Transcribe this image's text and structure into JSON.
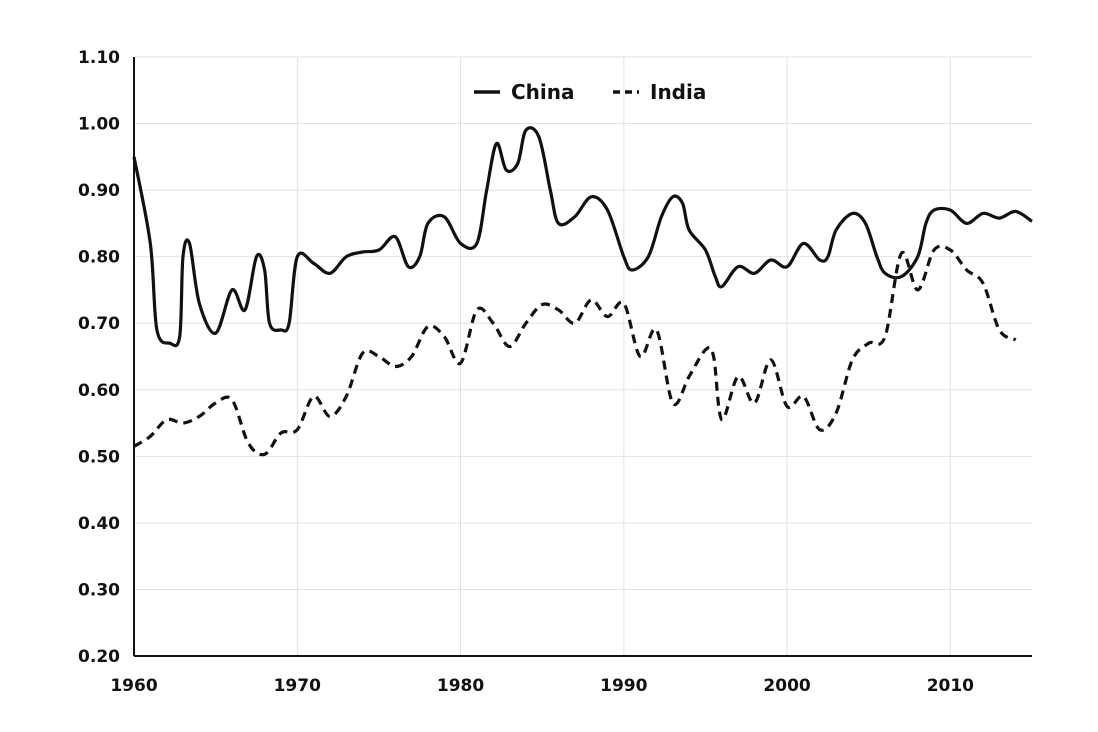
{
  "chart_data": {
    "type": "line",
    "title": "",
    "xlabel": "",
    "ylabel": "",
    "xlim": [
      1960,
      2015
    ],
    "ylim": [
      0.2,
      1.1
    ],
    "x_ticks": [
      1960,
      1970,
      1980,
      1990,
      2000,
      2010
    ],
    "y_ticks": [
      "0.20",
      "0.30",
      "0.40",
      "0.50",
      "0.60",
      "0.70",
      "0.80",
      "0.90",
      "1.00",
      "1.10"
    ],
    "grid": true,
    "legend_position": "top-center",
    "series": [
      {
        "name": "China",
        "style": "solid",
        "color": "#111111",
        "points": [
          [
            1960,
            0.95
          ],
          [
            1961,
            0.82
          ],
          [
            1961.4,
            0.69
          ],
          [
            1962.2,
            0.67
          ],
          [
            1962.8,
            0.68
          ],
          [
            1963,
            0.8
          ],
          [
            1963.4,
            0.82
          ],
          [
            1964,
            0.73
          ],
          [
            1965,
            0.685
          ],
          [
            1966,
            0.75
          ],
          [
            1966.8,
            0.72
          ],
          [
            1967.5,
            0.8
          ],
          [
            1968,
            0.78
          ],
          [
            1968.3,
            0.7
          ],
          [
            1969,
            0.69
          ],
          [
            1969.5,
            0.7
          ],
          [
            1970,
            0.8
          ],
          [
            1971,
            0.79
          ],
          [
            1972,
            0.775
          ],
          [
            1973,
            0.8
          ],
          [
            1974,
            0.807
          ],
          [
            1975,
            0.81
          ],
          [
            1976,
            0.83
          ],
          [
            1976.8,
            0.785
          ],
          [
            1977.5,
            0.8
          ],
          [
            1978,
            0.85
          ],
          [
            1979,
            0.86
          ],
          [
            1980,
            0.82
          ],
          [
            1981,
            0.82
          ],
          [
            1981.6,
            0.9
          ],
          [
            1982.2,
            0.97
          ],
          [
            1982.8,
            0.93
          ],
          [
            1983.5,
            0.94
          ],
          [
            1984,
            0.99
          ],
          [
            1984.8,
            0.98
          ],
          [
            1985.5,
            0.9
          ],
          [
            1986,
            0.85
          ],
          [
            1987,
            0.86
          ],
          [
            1988,
            0.89
          ],
          [
            1989,
            0.87
          ],
          [
            1990,
            0.8
          ],
          [
            1990.5,
            0.78
          ],
          [
            1991.5,
            0.8
          ],
          [
            1992.3,
            0.86
          ],
          [
            1993,
            0.89
          ],
          [
            1993.6,
            0.88
          ],
          [
            1994,
            0.84
          ],
          [
            1995,
            0.81
          ],
          [
            1995.6,
            0.77
          ],
          [
            1996,
            0.755
          ],
          [
            1997,
            0.785
          ],
          [
            1998,
            0.775
          ],
          [
            1999,
            0.795
          ],
          [
            2000,
            0.785
          ],
          [
            2001,
            0.82
          ],
          [
            2002,
            0.795
          ],
          [
            2002.5,
            0.8
          ],
          [
            2003,
            0.84
          ],
          [
            2004,
            0.865
          ],
          [
            2004.8,
            0.85
          ],
          [
            2005.5,
            0.8
          ],
          [
            2006,
            0.775
          ],
          [
            2007,
            0.77
          ],
          [
            2008,
            0.8
          ],
          [
            2008.5,
            0.85
          ],
          [
            2009,
            0.87
          ],
          [
            2010,
            0.87
          ],
          [
            2011,
            0.85
          ],
          [
            2012,
            0.865
          ],
          [
            2013,
            0.858
          ],
          [
            2014,
            0.868
          ],
          [
            2015,
            0.853
          ]
        ]
      },
      {
        "name": "India",
        "style": "dashed",
        "color": "#111111",
        "points": [
          [
            1960,
            0.515
          ],
          [
            1961,
            0.53
          ],
          [
            1962,
            0.555
          ],
          [
            1963,
            0.55
          ],
          [
            1964,
            0.56
          ],
          [
            1965,
            0.58
          ],
          [
            1966,
            0.585
          ],
          [
            1967,
            0.52
          ],
          [
            1968,
            0.503
          ],
          [
            1969,
            0.535
          ],
          [
            1970,
            0.54
          ],
          [
            1971,
            0.59
          ],
          [
            1972,
            0.56
          ],
          [
            1973,
            0.59
          ],
          [
            1974,
            0.655
          ],
          [
            1975,
            0.65
          ],
          [
            1976,
            0.635
          ],
          [
            1977,
            0.65
          ],
          [
            1978,
            0.695
          ],
          [
            1979,
            0.68
          ],
          [
            1980,
            0.64
          ],
          [
            1981,
            0.72
          ],
          [
            1982,
            0.7
          ],
          [
            1983,
            0.665
          ],
          [
            1984,
            0.7
          ],
          [
            1985,
            0.728
          ],
          [
            1986,
            0.72
          ],
          [
            1987,
            0.7
          ],
          [
            1988,
            0.735
          ],
          [
            1989,
            0.71
          ],
          [
            1990,
            0.73
          ],
          [
            1991,
            0.65
          ],
          [
            1992,
            0.69
          ],
          [
            1993,
            0.58
          ],
          [
            1994,
            0.62
          ],
          [
            1995,
            0.66
          ],
          [
            1995.5,
            0.65
          ],
          [
            1996,
            0.555
          ],
          [
            1997,
            0.62
          ],
          [
            1998,
            0.58
          ],
          [
            1999,
            0.645
          ],
          [
            2000,
            0.575
          ],
          [
            2001,
            0.59
          ],
          [
            2002,
            0.54
          ],
          [
            2003,
            0.565
          ],
          [
            2004,
            0.645
          ],
          [
            2005,
            0.67
          ],
          [
            2006,
            0.68
          ],
          [
            2007,
            0.805
          ],
          [
            2008,
            0.75
          ],
          [
            2009,
            0.81
          ],
          [
            2010,
            0.81
          ],
          [
            2011,
            0.78
          ],
          [
            2012,
            0.76
          ],
          [
            2013,
            0.69
          ],
          [
            2014,
            0.675
          ]
        ]
      }
    ]
  }
}
